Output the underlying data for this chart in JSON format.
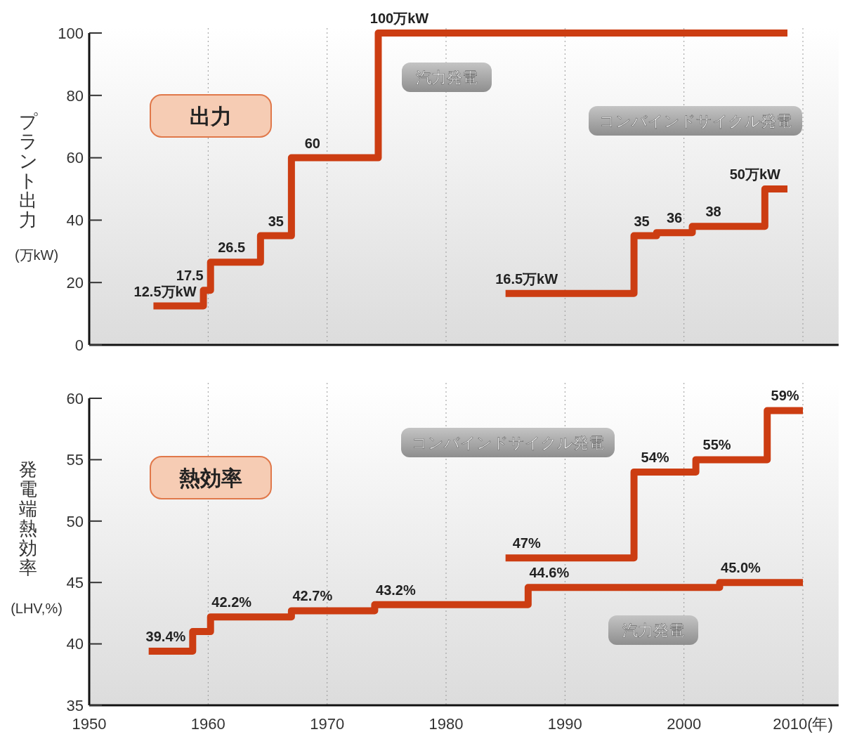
{
  "chart_data": [
    {
      "type": "step",
      "title": "出力",
      "ylabel": "プラント出力\n(万kW)",
      "xlim": [
        1950,
        2013
      ],
      "xticks": [
        1950,
        1960,
        1970,
        1980,
        1990,
        2000,
        2010
      ],
      "ylim": [
        0,
        100
      ],
      "yticks": [
        0,
        20,
        40,
        60,
        80,
        100
      ],
      "grid": "x",
      "tick_labels": "y",
      "series": [
        {
          "name": "汽力発電",
          "color": "#cc3d12",
          "x": [
            1955.4,
            1959.6,
            1960.2,
            1964.4,
            1967,
            1974.3,
            2008.7
          ],
          "values": [
            12.5,
            17.5,
            26.5,
            35,
            60,
            100,
            100
          ],
          "value_labels": [
            "12.5万kW",
            "17.5",
            "26.5",
            "35",
            "60",
            "100万kW",
            null
          ]
        },
        {
          "name": "コンバインドサイクル発電",
          "color": "#cc3d12",
          "x": [
            1985,
            1995.8,
            1997.7,
            2000.7,
            2006.8,
            2008.7
          ],
          "values": [
            16.5,
            35,
            36,
            38,
            50,
            50
          ],
          "value_labels": [
            "16.5万kW",
            "35",
            "36",
            "38",
            "50万kW",
            null
          ]
        }
      ]
    },
    {
      "type": "step",
      "title": "熱効率",
      "ylabel": "発電端熱効率\n(LHV,%)",
      "xlim": [
        1950,
        2013
      ],
      "xticks": [
        1950,
        1960,
        1970,
        1980,
        1990,
        2000,
        {
          "value": 2010,
          "label": "2010(年)"
        }
      ],
      "ylim": [
        35,
        60
      ],
      "yticks": [
        35,
        40,
        45,
        50,
        55,
        60
      ],
      "grid": "x",
      "series": [
        {
          "name": "汽力発電",
          "color": "#cc3d12",
          "x": [
            1955,
            1958.7,
            1960.2,
            1967,
            1974,
            1986.9,
            2003,
            2010
          ],
          "values": [
            39.4,
            41,
            42.2,
            42.7,
            43.2,
            44.6,
            45.0,
            45.0
          ],
          "value_labels": [
            "39.4%",
            null,
            "42.2%",
            "42.7%",
            "43.2%",
            "44.6%",
            "45.0%",
            null
          ]
        },
        {
          "name": "コンバインドサイクル発電",
          "color": "#cc3d12",
          "x": [
            1985,
            1995.8,
            2001,
            2007,
            2010
          ],
          "values": [
            47,
            54,
            55,
            59,
            59
          ],
          "value_labels": [
            "47%",
            "54%",
            "55%",
            "59%",
            null
          ]
        }
      ]
    }
  ]
}
